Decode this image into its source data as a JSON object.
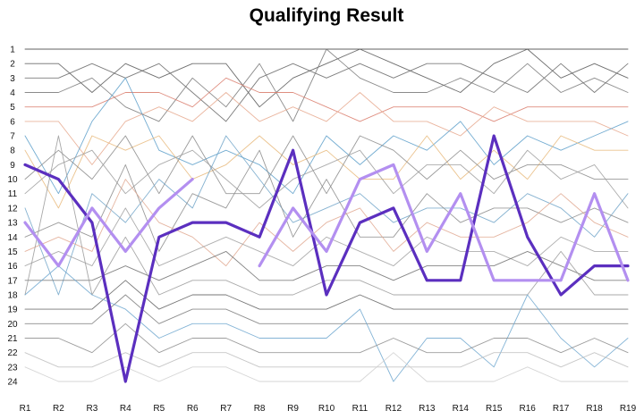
{
  "chart_data": {
    "type": "line",
    "title": "Qualifying Result",
    "xlabel": "",
    "ylabel": "",
    "y_inverted": true,
    "ylim": [
      1,
      24
    ],
    "grid": false,
    "legend": "none",
    "categories": [
      "R1",
      "R2",
      "R3",
      "R4",
      "R5",
      "R6",
      "R7",
      "R8",
      "R9",
      "R10",
      "R11",
      "R12",
      "R13",
      "R14",
      "R15",
      "R16",
      "R17",
      "R18",
      "R19"
    ],
    "y_ticks": [
      1,
      2,
      3,
      4,
      5,
      6,
      7,
      8,
      9,
      10,
      11,
      12,
      13,
      14,
      15,
      16,
      17,
      18,
      19,
      20,
      21,
      22,
      23,
      24
    ],
    "series": [
      {
        "color": "#5b2fbf",
        "highlight": true,
        "width": 3.2,
        "values": [
          9,
          10,
          13,
          24,
          14,
          13,
          13,
          14,
          8,
          18,
          13,
          12,
          17,
          17,
          7,
          14,
          18,
          16,
          16
        ]
      },
      {
        "color": "#b38ff0",
        "highlight": true,
        "width": 3.2,
        "values": [
          13,
          16,
          12,
          15,
          12,
          10,
          null,
          16,
          12,
          15,
          10,
          9,
          15,
          11,
          17,
          17,
          17,
          11,
          17
        ]
      },
      {
        "color": "#444444",
        "values": [
          1,
          1,
          1,
          1,
          1,
          1,
          1,
          1,
          1,
          1,
          1,
          1,
          1,
          1,
          1,
          1,
          1,
          1,
          1
        ]
      },
      {
        "color": "#555555",
        "values": [
          2,
          2,
          4,
          2,
          3,
          2,
          2,
          5,
          3,
          2,
          1,
          2,
          3,
          4,
          2,
          1,
          3,
          2,
          3
        ]
      },
      {
        "color": "#666666",
        "values": [
          3,
          3,
          2,
          3,
          2,
          4,
          6,
          3,
          2,
          3,
          2,
          3,
          2,
          2,
          3,
          4,
          2,
          4,
          2
        ]
      },
      {
        "color": "#777777",
        "values": [
          4,
          4,
          3,
          5,
          6,
          3,
          5,
          2,
          6,
          1,
          3,
          4,
          4,
          3,
          4,
          2,
          4,
          3,
          4
        ]
      },
      {
        "color": "#d97a6a",
        "values": [
          5,
          5,
          5,
          4,
          4,
          5,
          3,
          4,
          4,
          5,
          6,
          5,
          5,
          5,
          6,
          5,
          5,
          5,
          5
        ]
      },
      {
        "color": "#e6a78c",
        "values": [
          6,
          6,
          9,
          6,
          5,
          6,
          4,
          6,
          5,
          6,
          4,
          6,
          6,
          7,
          5,
          6,
          6,
          6,
          7
        ]
      },
      {
        "color": "#5a9ec9",
        "values": [
          7,
          11,
          6,
          3,
          8,
          9,
          8,
          9,
          11,
          7,
          9,
          7,
          8,
          6,
          9,
          7,
          8,
          7,
          6
        ]
      },
      {
        "color": "#e8b87a",
        "values": [
          8,
          12,
          7,
          8,
          7,
          10,
          9,
          7,
          9,
          8,
          10,
          10,
          7,
          10,
          8,
          10,
          7,
          8,
          8
        ]
      },
      {
        "color": "#888888",
        "values": [
          10,
          8,
          10,
          7,
          11,
          7,
          11,
          11,
          7,
          11,
          7,
          8,
          10,
          8,
          10,
          9,
          9,
          10,
          10
        ]
      },
      {
        "color": "#9c9c9c",
        "values": [
          11,
          9,
          8,
          11,
          9,
          8,
          10,
          12,
          10,
          9,
          8,
          11,
          9,
          9,
          11,
          8,
          10,
          9,
          12
        ]
      },
      {
        "color": "#6fa3c8",
        "values": [
          12,
          18,
          11,
          13,
          10,
          12,
          7,
          10,
          13,
          12,
          11,
          13,
          12,
          12,
          13,
          11,
          12,
          14,
          11
        ]
      },
      {
        "color": "#8a8a8a",
        "values": [
          14,
          13,
          14,
          9,
          15,
          11,
          12,
          8,
          14,
          10,
          14,
          14,
          11,
          13,
          12,
          12,
          13,
          12,
          13
        ]
      },
      {
        "color": "#e0a890",
        "values": [
          15,
          14,
          15,
          10,
          13,
          14,
          16,
          13,
          15,
          13,
          12,
          15,
          13,
          14,
          14,
          13,
          11,
          13,
          14
        ]
      },
      {
        "color": "#a0a0a0",
        "values": [
          16,
          15,
          16,
          12,
          16,
          15,
          14,
          15,
          16,
          14,
          15,
          16,
          14,
          15,
          15,
          16,
          14,
          15,
          15
        ]
      },
      {
        "color": "#707070",
        "values": [
          17,
          17,
          17,
          16,
          17,
          16,
          15,
          17,
          17,
          16,
          16,
          17,
          16,
          16,
          16,
          15,
          16,
          17,
          17
        ]
      },
      {
        "color": "#999999",
        "values": [
          18,
          7,
          18,
          14,
          18,
          17,
          17,
          18,
          18,
          17,
          17,
          18,
          18,
          18,
          18,
          18,
          15,
          18,
          18
        ]
      },
      {
        "color": "#5f5f5f",
        "values": [
          19,
          19,
          19,
          17,
          19,
          18,
          18,
          19,
          19,
          19,
          18,
          19,
          19,
          19,
          19,
          19,
          19,
          19,
          19
        ]
      },
      {
        "color": "#7a7a7a",
        "values": [
          20,
          20,
          20,
          18,
          20,
          19,
          19,
          20,
          20,
          20,
          20,
          20,
          20,
          20,
          20,
          20,
          20,
          20,
          20
        ]
      },
      {
        "color": "#6ea7cf",
        "values": [
          18,
          16,
          18,
          19,
          21,
          20,
          20,
          21,
          21,
          21,
          19,
          24,
          21,
          21,
          23,
          18,
          21,
          23,
          21
        ]
      },
      {
        "color": "#8c8c8c",
        "values": [
          21,
          21,
          22,
          20,
          22,
          21,
          21,
          22,
          22,
          22,
          22,
          21,
          22,
          22,
          21,
          21,
          22,
          21,
          22
        ]
      },
      {
        "color": "#bdbdbd",
        "values": [
          22,
          23,
          23,
          22,
          23,
          22,
          22,
          23,
          23,
          23,
          23,
          23,
          23,
          23,
          22,
          22,
          23,
          22,
          23
        ]
      },
      {
        "color": "#cfcfcf",
        "values": [
          23,
          24,
          24,
          23,
          24,
          23,
          23,
          24,
          24,
          24,
          24,
          22,
          24,
          24,
          24,
          23,
          24,
          24,
          24
        ]
      }
    ]
  }
}
